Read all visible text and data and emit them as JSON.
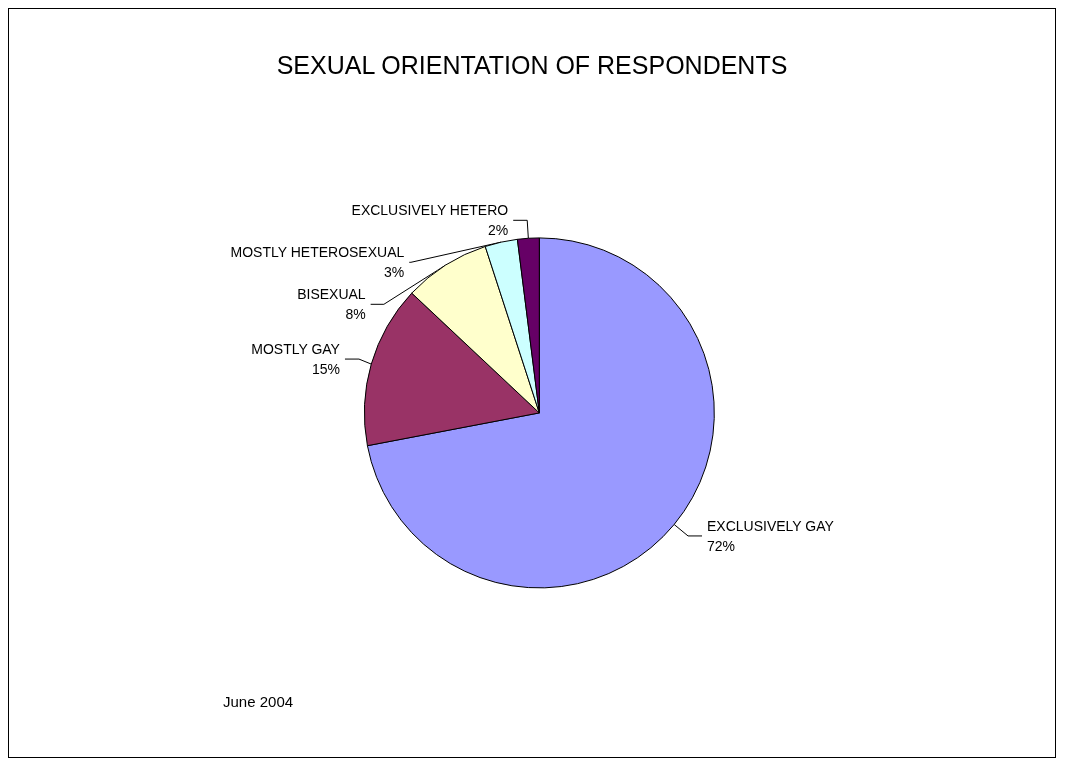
{
  "chart_data": {
    "type": "pie",
    "title": "SEXUAL ORIENTATION OF RESPONDENTS",
    "categories": [
      "EXCLUSIVELY GAY",
      "MOSTLY GAY",
      "BISEXUAL",
      "MOSTLY HETEROSEXUAL",
      "EXCLUSIVELY HETERO"
    ],
    "values": [
      72,
      15,
      8,
      3,
      2
    ],
    "colors": [
      "#9999ff",
      "#993366",
      "#ffffcc",
      "#ccffff",
      "#660066"
    ],
    "value_labels": [
      "72%",
      "15%",
      "8%",
      "3%",
      "2%"
    ],
    "annotations": [
      "June 2004"
    ]
  }
}
